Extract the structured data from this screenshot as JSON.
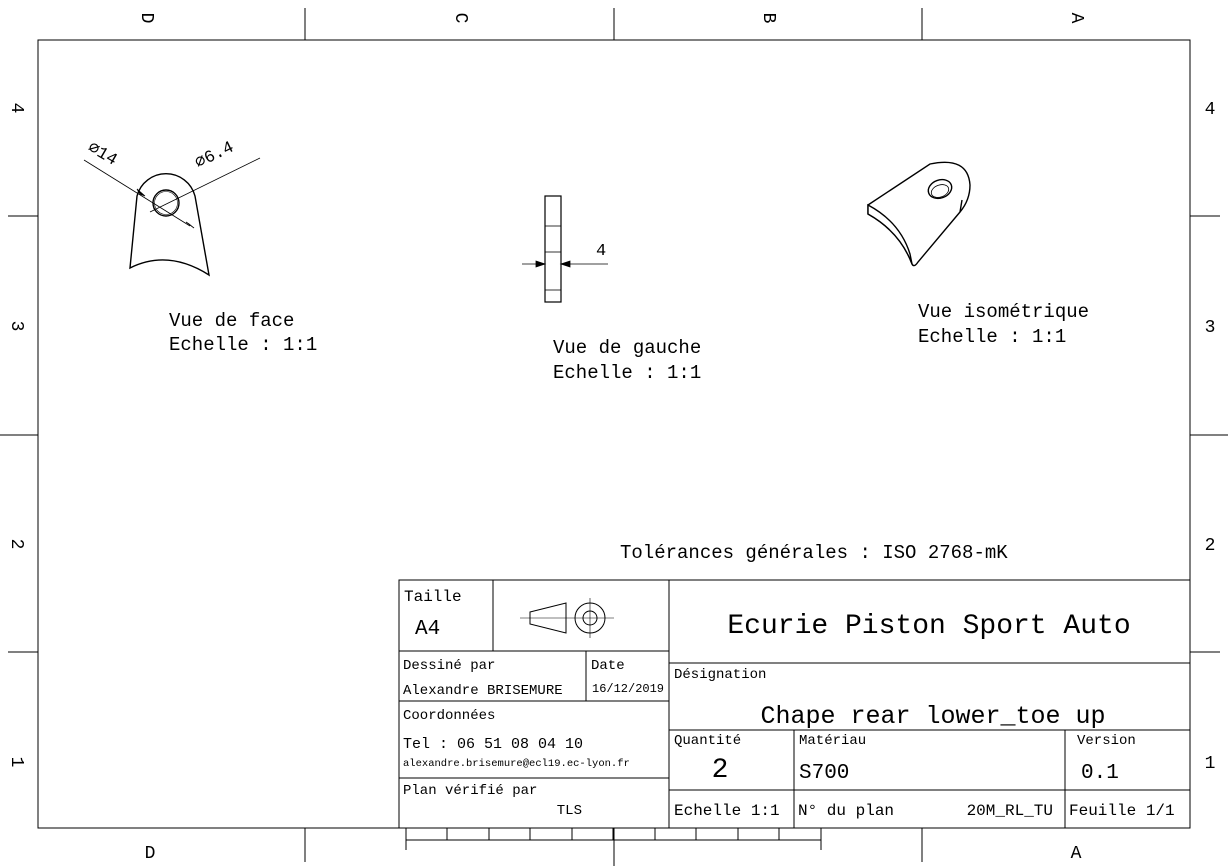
{
  "border": {
    "columns_top": [
      "D",
      "C",
      "B",
      "A"
    ],
    "columns_bottom": [
      "D",
      "A"
    ],
    "rows": [
      "4",
      "3",
      "2",
      "1"
    ]
  },
  "views": {
    "front": {
      "title": "Vue de face",
      "scale": "Echelle :  1:1",
      "dim_outer": "∅14",
      "dim_inner": "∅6.4"
    },
    "left": {
      "title": "Vue de gauche",
      "scale": "Echelle :  1:1",
      "dim_thickness": "4"
    },
    "iso": {
      "title": "Vue isométrique",
      "scale": "Echelle :  1:1"
    }
  },
  "tolerances": "Tolérances générales : ISO 2768-mK",
  "title_block": {
    "size_label": "Taille",
    "size_value": "A4",
    "company": "Ecurie Piston Sport Auto",
    "drawn_by_label": "Dessiné par",
    "drawn_by_value": "Alexandre BRISEMURE",
    "date_label": "Date",
    "date_value": "16/12/2019",
    "designation_label": "Désignation",
    "designation_value": "Chape rear lower_toe up",
    "contact_label": "Coordonnées",
    "phone": "Tel : 06 51 08 04 10",
    "email": "alexandre.brisemure@ecl19.ec-lyon.fr",
    "quantity_label": "Quantité",
    "quantity_value": "2",
    "material_label": "Matériau",
    "material_value": "S700",
    "version_label": "Version",
    "version_value": "0.1",
    "checked_label": "Plan vérifié par",
    "checked_value": "TLS",
    "scale": "Echelle 1:1",
    "plan_number_label": "N° du plan",
    "plan_number_value": "20M_RL_TU",
    "sheet": "Feuille 1/1"
  }
}
